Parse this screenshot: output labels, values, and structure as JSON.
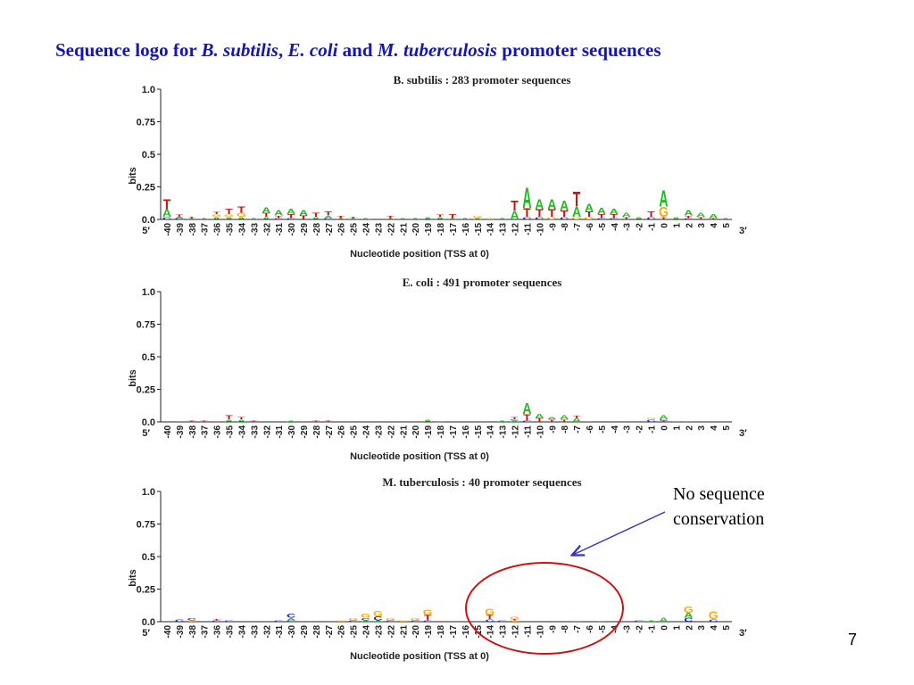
{
  "slide": {
    "title_parts": [
      "Sequence logo for ",
      "B. subtilis",
      ", ",
      "E. coli",
      " and ",
      "M. tuberculosis",
      " promoter sequences"
    ],
    "annotation_line1": "No sequence",
    "annotation_line2": "conservation",
    "page_number": "7"
  },
  "colors": {
    "A": "#22bb22",
    "C": "#1a1acc",
    "G": "#ffaa00",
    "T": "#cc1111",
    "title": "#1515b3",
    "circle": "#cc1111",
    "arrow": "#3333bb"
  },
  "chart_data": [
    {
      "type": "sequence_logo",
      "title": "B. subtilis : 283 promoter sequences",
      "ylabel": "bits",
      "xlabel": "Nucleotide position (TSS at 0)",
      "left_end": "5′",
      "right_end": "3′",
      "ylim": [
        0,
        1.0
      ],
      "yticks": [
        "0.0",
        "0.25",
        "0.5",
        "0.75",
        "1.0"
      ],
      "positions": [
        "-40",
        "-39",
        "-38",
        "-37",
        "-36",
        "-35",
        "-34",
        "-33",
        "-32",
        "-31",
        "-30",
        "-29",
        "-28",
        "-27",
        "-26",
        "-25",
        "-24",
        "-23",
        "-22",
        "-21",
        "-20",
        "-19",
        "-18",
        "-17",
        "-16",
        "-15",
        "-14",
        "-13",
        "-12",
        "-11",
        "-10",
        "-9",
        "-8",
        "-7",
        "-6",
        "-5",
        "-4",
        "-3",
        "-2",
        "-1",
        "0",
        "1",
        "2",
        "3",
        "4",
        "5"
      ],
      "stacks": [
        [
          [
            "C",
            0.02
          ],
          [
            "A",
            0.06
          ],
          [
            "T",
            0.08
          ]
        ],
        [
          [
            "C",
            0.01
          ],
          [
            "A",
            0.01
          ],
          [
            "T",
            0.02
          ]
        ],
        [
          [
            "A",
            0.01
          ],
          [
            "T",
            0.01
          ]
        ],
        [
          [
            "A",
            0.01
          ]
        ],
        [
          [
            "A",
            0.02
          ],
          [
            "G",
            0.02
          ],
          [
            "T",
            0.02
          ]
        ],
        [
          [
            "A",
            0.02
          ],
          [
            "G",
            0.02
          ],
          [
            "T",
            0.04
          ]
        ],
        [
          [
            "A",
            0.02
          ],
          [
            "G",
            0.03
          ],
          [
            "T",
            0.05
          ]
        ],
        [
          [
            "A",
            0.01
          ]
        ],
        [
          [
            "A",
            0.02
          ],
          [
            "T",
            0.03
          ],
          [
            "A",
            0.04
          ]
        ],
        [
          [
            "C",
            0.01
          ],
          [
            "T",
            0.02
          ],
          [
            "A",
            0.04
          ]
        ],
        [
          [
            "C",
            0.01
          ],
          [
            "T",
            0.03
          ],
          [
            "A",
            0.04
          ]
        ],
        [
          [
            "T",
            0.03
          ],
          [
            "A",
            0.04
          ]
        ],
        [
          [
            "A",
            0.02
          ],
          [
            "T",
            0.03
          ]
        ],
        [
          [
            "C",
            0.01
          ],
          [
            "A",
            0.02
          ],
          [
            "T",
            0.03
          ]
        ],
        [
          [
            "A",
            0.01
          ],
          [
            "T",
            0.02
          ]
        ],
        [
          [
            "A",
            0.01
          ],
          [
            "T",
            0.01
          ]
        ],
        [
          [
            "A",
            0.01
          ]
        ],
        [],
        [
          [
            "A",
            0.01
          ],
          [
            "T",
            0.02
          ]
        ],
        [
          [
            "A",
            0.01
          ]
        ],
        [
          [
            "A",
            0.01
          ]
        ],
        [
          [
            "A",
            0.02
          ]
        ],
        [
          [
            "A",
            0.02
          ],
          [
            "T",
            0.02
          ]
        ],
        [
          [
            "A",
            0.01
          ],
          [
            "T",
            0.03
          ]
        ],
        [
          [
            "A",
            0.01
          ]
        ],
        [
          [
            "A",
            0.01
          ],
          [
            "G",
            0.02
          ]
        ],
        [
          [
            "G",
            0.01
          ]
        ],
        [
          [
            "A",
            0.01
          ]
        ],
        [
          [
            "A",
            0.07
          ],
          [
            "T",
            0.08
          ]
        ],
        [
          [
            "C",
            0.02
          ],
          [
            "T",
            0.07
          ],
          [
            "A",
            0.16
          ]
        ],
        [
          [
            "C",
            0.02
          ],
          [
            "T",
            0.06
          ],
          [
            "A",
            0.08
          ]
        ],
        [
          [
            "G",
            0.02
          ],
          [
            "T",
            0.06
          ],
          [
            "A",
            0.08
          ]
        ],
        [
          [
            "C",
            0.02
          ],
          [
            "T",
            0.05
          ],
          [
            "A",
            0.08
          ]
        ],
        [
          [
            "G",
            0.02
          ],
          [
            "A",
            0.08
          ],
          [
            "T",
            0.12
          ]
        ],
        [
          [
            "G",
            0.02
          ],
          [
            "T",
            0.04
          ],
          [
            "A",
            0.06
          ]
        ],
        [
          [
            "C",
            0.01
          ],
          [
            "T",
            0.03
          ],
          [
            "A",
            0.05
          ]
        ],
        [
          [
            "C",
            0.01
          ],
          [
            "T",
            0.03
          ],
          [
            "A",
            0.04
          ]
        ],
        [
          [
            "T",
            0.02
          ],
          [
            "A",
            0.03
          ]
        ],
        [
          [
            "A",
            0.02
          ]
        ],
        [
          [
            "C",
            0.02
          ],
          [
            "T",
            0.04
          ]
        ],
        [
          [
            "T",
            0.02
          ],
          [
            "G",
            0.08
          ],
          [
            "A",
            0.13
          ]
        ],
        [
          [
            "A",
            0.02
          ]
        ],
        [
          [
            "C",
            0.01
          ],
          [
            "T",
            0.02
          ],
          [
            "A",
            0.04
          ]
        ],
        [
          [
            "T",
            0.02
          ],
          [
            "A",
            0.03
          ]
        ],
        [
          [
            "T",
            0.01
          ],
          [
            "A",
            0.03
          ]
        ],
        [
          [
            "A",
            0.01
          ]
        ]
      ]
    },
    {
      "type": "sequence_logo",
      "title": "E. coli : 491 promoter sequences",
      "ylabel": "bits",
      "xlabel": "Nucleotide position (TSS at 0)",
      "left_end": "5′",
      "right_end": "3′",
      "ylim": [
        0,
        1.0
      ],
      "yticks": [
        "0.0",
        "0.25",
        "0.5",
        "0.75",
        "1.0"
      ],
      "positions": [
        "-40",
        "-39",
        "-38",
        "-37",
        "-36",
        "-35",
        "-34",
        "-33",
        "-32",
        "-31",
        "-30",
        "-29",
        "-28",
        "-27",
        "-26",
        "-25",
        "-24",
        "-23",
        "-22",
        "-21",
        "-20",
        "-19",
        "-18",
        "-17",
        "-16",
        "-15",
        "-14",
        "-13",
        "-12",
        "-11",
        "-10",
        "-9",
        "-8",
        "-7",
        "-6",
        "-5",
        "-4",
        "-3",
        "-2",
        "-1",
        "0",
        "1",
        "2",
        "3",
        "4",
        "5"
      ],
      "stacks": [
        [],
        [
          [
            "T",
            0.005
          ]
        ],
        [
          [
            "T",
            0.01
          ]
        ],
        [
          [
            "T",
            0.01
          ]
        ],
        [
          [
            "T",
            0.005
          ]
        ],
        [
          [
            "A",
            0.02
          ],
          [
            "T",
            0.03
          ]
        ],
        [
          [
            "A",
            0.02
          ],
          [
            "T",
            0.02
          ]
        ],
        [
          [
            "T",
            0.01
          ]
        ],
        [],
        [],
        [
          [
            "A",
            0.01
          ]
        ],
        [
          [
            "T",
            0.005
          ]
        ],
        [
          [
            "T",
            0.01
          ]
        ],
        [
          [
            "T",
            0.01
          ]
        ],
        [],
        [],
        [],
        [],
        [],
        [],
        [],
        [
          [
            "A",
            0.02
          ]
        ],
        [
          [
            "A",
            0.005
          ]
        ],
        [],
        [],
        [],
        [],
        [
          [
            "A",
            0.01
          ]
        ],
        [
          [
            "A",
            0.01
          ],
          [
            "C",
            0.01
          ],
          [
            "T",
            0.02
          ]
        ],
        [
          [
            "C",
            0.01
          ],
          [
            "T",
            0.05
          ],
          [
            "A",
            0.09
          ]
        ],
        [
          [
            "T",
            0.03
          ],
          [
            "A",
            0.03
          ]
        ],
        [
          [
            "T",
            0.02
          ],
          [
            "A",
            0.02
          ]
        ],
        [
          [
            "T",
            0.02
          ],
          [
            "A",
            0.03
          ]
        ],
        [
          [
            "A",
            0.03
          ],
          [
            "T",
            0.02
          ]
        ],
        [
          [
            "T",
            0.005
          ]
        ],
        [],
        [],
        [],
        [],
        [
          [
            "C",
            0.02
          ],
          [
            "G",
            0.01
          ]
        ],
        [
          [
            "T",
            0.01
          ],
          [
            "C",
            0.01
          ],
          [
            "A",
            0.03
          ]
        ],
        [
          [
            "A",
            0.005
          ]
        ],
        [
          [
            "A",
            0.005
          ]
        ],
        [],
        [],
        []
      ]
    },
    {
      "type": "sequence_logo",
      "title": "M. tuberculosis : 40 promoter sequences",
      "ylabel": "bits",
      "xlabel": "Nucleotide position (TSS at 0)",
      "left_end": "5′",
      "right_end": "3′",
      "ylim": [
        0,
        1.0
      ],
      "yticks": [
        "0.0",
        "0.25",
        "0.5",
        "0.75",
        "1.0"
      ],
      "positions": [
        "-40",
        "-39",
        "-38",
        "-37",
        "-36",
        "-35",
        "-34",
        "-33",
        "-32",
        "-31",
        "-30",
        "-29",
        "-28",
        "-27",
        "-26",
        "-25",
        "-24",
        "-23",
        "-22",
        "-21",
        "-20",
        "-19",
        "-18",
        "-17",
        "-16",
        "-15",
        "-14",
        "-13",
        "-12",
        "-11",
        "-10",
        "-9",
        "-8",
        "-7",
        "-6",
        "-5",
        "-4",
        "-3",
        "-2",
        "-1",
        "0",
        "1",
        "2",
        "3",
        "4",
        "5"
      ],
      "stacks": [
        [],
        [
          [
            "C",
            0.02
          ]
        ],
        [
          [
            "G",
            0.01
          ],
          [
            "C",
            0.02
          ]
        ],
        [],
        [
          [
            "C",
            0.01
          ],
          [
            "T",
            0.01
          ]
        ],
        [
          [
            "C",
            0.01
          ]
        ],
        [],
        [],
        [],
        [
          [
            "C",
            0.01
          ]
        ],
        [
          [
            "C",
            0.01
          ],
          [
            "A",
            0.02
          ],
          [
            "C",
            0.03
          ]
        ],
        [],
        [],
        [],
        [
          [
            "G",
            0.01
          ]
        ],
        [
          [
            "C",
            0.01
          ],
          [
            "G",
            0.02
          ]
        ],
        [
          [
            "A",
            0.01
          ],
          [
            "C",
            0.02
          ],
          [
            "G",
            0.03
          ]
        ],
        [
          [
            "A",
            0.01
          ],
          [
            "C",
            0.03
          ],
          [
            "G",
            0.04
          ]
        ],
        [
          [
            "C",
            0.01
          ],
          [
            "G",
            0.02
          ]
        ],
        [
          [
            "G",
            0.01
          ]
        ],
        [
          [
            "C",
            0.01
          ],
          [
            "G",
            0.02
          ]
        ],
        [
          [
            "C",
            0.01
          ],
          [
            "T",
            0.04
          ],
          [
            "G",
            0.04
          ]
        ],
        [],
        [],
        [],
        [],
        [
          [
            "C",
            0.02
          ],
          [
            "T",
            0.03
          ],
          [
            "G",
            0.05
          ]
        ],
        [
          [
            "C",
            0.01
          ]
        ],
        [
          [
            "G",
            0.01
          ],
          [
            "T",
            0.01
          ],
          [
            "G",
            0.02
          ]
        ],
        [],
        [],
        [],
        [],
        [
          [
            "A",
            0.005
          ]
        ],
        [],
        [
          [
            "A",
            0.005
          ]
        ],
        [],
        [],
        [
          [
            "C",
            0.01
          ]
        ],
        [
          [
            "A",
            0.01
          ]
        ],
        [
          [
            "A",
            0.03
          ]
        ],
        [],
        [
          [
            "C",
            0.03
          ],
          [
            "A",
            0.04
          ],
          [
            "G",
            0.05
          ]
        ],
        [],
        [
          [
            "C",
            0.02
          ],
          [
            "G",
            0.06
          ]
        ],
        []
      ]
    }
  ]
}
